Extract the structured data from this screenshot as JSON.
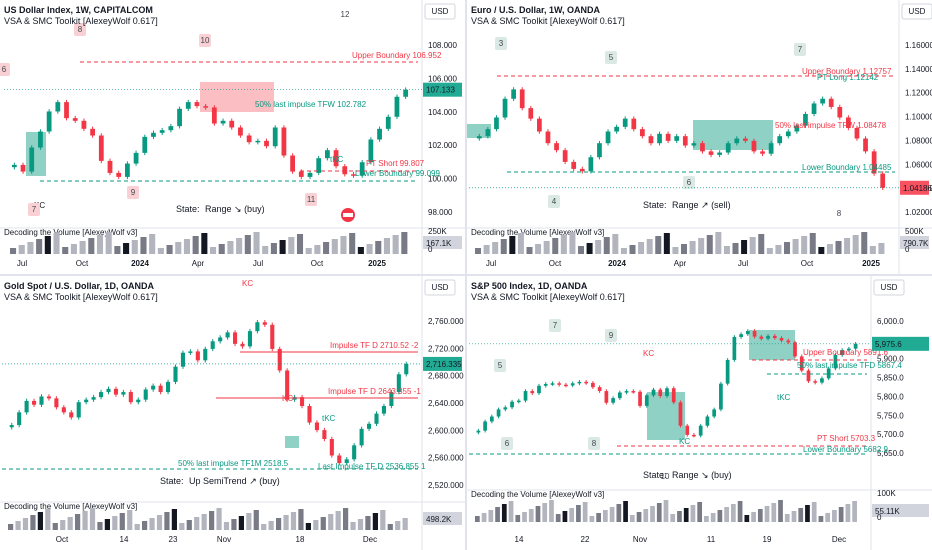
{
  "chart_data": [
    {
      "type": "candlestick",
      "title": "US Dollar Index, 1W, CAPITALCOM",
      "indicator": "VSA & SMC Toolkit [AlexeyWolf 0.617]",
      "currency": "USD",
      "price_label": "107.133",
      "y_ticks": [
        "108.000",
        "106.000",
        "104.000",
        "102.000",
        "100.000",
        "98.000"
      ],
      "x_ticks": [
        "Jul",
        "Oct",
        "2024",
        "Apr",
        "Jul",
        "Oct",
        "2025"
      ],
      "ylim": [
        97,
        111
      ],
      "close": [
        101.5,
        101.0,
        102.8,
        104.0,
        105.5,
        106.2,
        105.0,
        104.8,
        104.2,
        103.7,
        101.8,
        100.9,
        100.6,
        101.6,
        102.4,
        103.6,
        103.9,
        104.1,
        104.4,
        105.7,
        106.2,
        105.9,
        105.8,
        104.6,
        104.8,
        104.3,
        103.7,
        103.2,
        103.3,
        102.9,
        104.3,
        102.2,
        101.0,
        100.6,
        100.9,
        102.0,
        102.6,
        101.4,
        100.8,
        100.7,
        101.7,
        103.4,
        104.2,
        105.1,
        106.6,
        107.13
      ],
      "annotations": [
        {
          "text": "Upper Boundary 106.952",
          "color": "#f23645"
        },
        {
          "text": "50% last impulse TFW 102.782",
          "color": "#089981"
        },
        {
          "text": "PT Short 99.807",
          "color": "#f23645"
        },
        {
          "text": "Lower Boundary 99.099",
          "color": "#089981"
        },
        {
          "text": "tKC",
          "color": "#089981"
        },
        {
          "text": "KC",
          "color": "#131722"
        }
      ],
      "wave_labels": [
        "6",
        "8",
        "10",
        "12",
        "9",
        "7",
        "11"
      ],
      "state_label": "State:",
      "state_value": "Range ↘ (buy)",
      "volume_label": "Decoding the Volume [AlexeyWolf v3]",
      "volume_value": "167.1K",
      "volume_ticks": [
        "250K",
        "0"
      ]
    },
    {
      "type": "candlestick",
      "title": "Euro / U.S. Dollar, 1W, OANDA",
      "indicator": "VSA & SMC Toolkit [AlexeyWolf 0.617]",
      "currency": "USD",
      "price_label": "1.04186",
      "y_ticks": [
        "1.16000",
        "1.14000",
        "1.12000",
        "1.10000",
        "1.08000",
        "1.06000",
        "1.04000",
        "1.02000"
      ],
      "x_ticks": [
        "Jul",
        "Oct",
        "2024",
        "Apr",
        "Jul",
        "Oct",
        "2025"
      ],
      "ylim": [
        1.01,
        1.17
      ],
      "close": [
        1.086,
        1.092,
        1.102,
        1.118,
        1.126,
        1.11,
        1.101,
        1.09,
        1.08,
        1.074,
        1.064,
        1.058,
        1.056,
        1.068,
        1.08,
        1.09,
        1.094,
        1.101,
        1.092,
        1.086,
        1.08,
        1.088,
        1.082,
        1.086,
        1.078,
        1.08,
        1.073,
        1.07,
        1.072,
        1.08,
        1.084,
        1.082,
        1.073,
        1.071,
        1.08,
        1.086,
        1.09,
        1.095,
        1.105,
        1.114,
        1.118,
        1.111,
        1.102,
        1.093,
        1.084,
        1.073,
        1.054,
        1.04186
      ],
      "annotations": [
        {
          "text": "Upper Boundary 1.12757",
          "color": "#f23645"
        },
        {
          "text": "PT Long 1.12142",
          "color": "#089981"
        },
        {
          "text": "50% last impulse TFW 1.08478",
          "color": "#f23645"
        },
        {
          "text": "Lower Boundary 1.04485",
          "color": "#089981"
        }
      ],
      "wave_labels": [
        "3",
        "5",
        "7",
        "4",
        "6",
        "8"
      ],
      "state_label": "State:",
      "state_value": "Range ↗ (sell)",
      "volume_label": "Decoding the Volume [AlexeyWolf v3]",
      "volume_value": "790.7K",
      "volume_ticks": [
        "500K",
        "0"
      ]
    },
    {
      "type": "candlestick",
      "title": "Gold Spot / U.S. Dollar, 1D, OANDA",
      "indicator": "VSA & SMC Toolkit [AlexeyWolf 0.617]",
      "currency": "USD",
      "price_label": "2,716.335",
      "y_ticks": [
        "2,760.000",
        "2,720.000",
        "2,680.000",
        "2,640.000",
        "2,600.000",
        "2,560.000",
        "2,520.000"
      ],
      "x_ticks": [
        "Oct",
        "14",
        "23",
        "Nov",
        "18",
        "Dec"
      ],
      "ylim": [
        2505,
        2795
      ],
      "close": [
        2620,
        2640,
        2658,
        2652,
        2665,
        2662,
        2648,
        2640,
        2632,
        2656,
        2660,
        2664,
        2672,
        2677,
        2668,
        2672,
        2656,
        2660,
        2676,
        2682,
        2672,
        2688,
        2712,
        2734,
        2736,
        2722,
        2740,
        2752,
        2758,
        2766,
        2748,
        2744,
        2768,
        2782,
        2778,
        2740,
        2706,
        2660,
        2664,
        2650,
        2624,
        2612,
        2598,
        2572,
        2560,
        2566,
        2588,
        2614,
        2622,
        2638,
        2650,
        2672,
        2700,
        2716.335
      ],
      "annotations": [
        {
          "text": "Impulse TF D 2710.52 -2",
          "color": "#f23645"
        },
        {
          "text": "Impulse TF D 2643.355 -1",
          "color": "#f23645"
        },
        {
          "text": "50% last impulse TF1M 2518.5",
          "color": "#089981"
        },
        {
          "text": "Last Impulse TF D 2536.855 1",
          "color": "#089981"
        },
        {
          "text": "KC",
          "color": "#f23645"
        },
        {
          "text": "KC",
          "color": "#f23645"
        },
        {
          "text": "tKC",
          "color": "#089981"
        }
      ],
      "wave_labels": [],
      "state_label": "State:",
      "state_value": "Up SemiTrend ↗ (buy)",
      "volume_label": "Decoding the Volume [AlexeyWolf v3]",
      "volume_value": "498.2K",
      "volume_ticks": []
    },
    {
      "type": "candlestick",
      "title": "S&P 500 Index, 1D, OANDA",
      "indicator": "VSA & SMC Toolkit [AlexeyWolf 0.617]",
      "currency": "USD",
      "price_label": "5,975.6",
      "y_ticks": [
        "6,000.0",
        "5,950.0",
        "5,900.0",
        "5,850.0",
        "5,800.0",
        "5,750.0",
        "5,700.0",
        "5,650.0"
      ],
      "x_ticks": [
        "14",
        "22",
        "Nov",
        "11",
        "19",
        "Dec"
      ],
      "ylim": [
        5630,
        6060
      ],
      "close": [
        5730,
        5756,
        5770,
        5790,
        5796,
        5812,
        5815,
        5842,
        5836,
        5857,
        5862,
        5864,
        5860,
        5858,
        5864,
        5868,
        5865,
        5853,
        5842,
        5809,
        5822,
        5838,
        5842,
        5840,
        5800,
        5830,
        5846,
        5828,
        5850,
        5810,
        5744,
        5718,
        5716,
        5744,
        5770,
        5790,
        5863,
        5930,
        5995,
        6003,
        6012,
        5996,
        5990,
        5998,
        5992,
        5985,
        5980,
        5940,
        5900,
        5870,
        5866,
        5878,
        5906,
        5944,
        5958,
        5962,
        5975.6
      ],
      "annotations": [
        {
          "text": "Upper Boundary 5891.6",
          "color": "#f23645"
        },
        {
          "text": "50% last impulse TFD 5867.4",
          "color": "#089981"
        },
        {
          "text": "PT Short 5703.3",
          "color": "#f23645"
        },
        {
          "text": "Lower Boundary 5682.9",
          "color": "#089981"
        },
        {
          "text": "KC",
          "color": "#f23645"
        },
        {
          "text": "tKC",
          "color": "#089981"
        },
        {
          "text": "KC",
          "color": "#089981"
        }
      ],
      "wave_labels": [
        "5",
        "7",
        "9",
        "6",
        "8",
        "10"
      ],
      "state_label": "State:",
      "state_value": "Range ↘ (buy)",
      "volume_label": "Decoding the Volume [AlexeyWolf v3]",
      "volume_value": "55.11K",
      "volume_ticks": [
        "100K",
        "0"
      ]
    }
  ]
}
